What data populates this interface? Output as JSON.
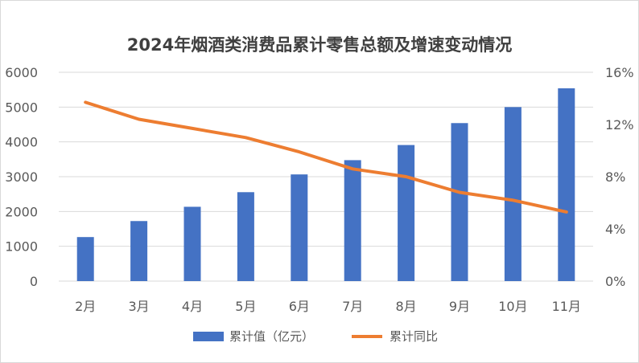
{
  "chart_data": {
    "type": "bar",
    "title": "2024年烟酒类消费品累计零售总额及增速变动情况",
    "categories": [
      "2月",
      "3月",
      "4月",
      "5月",
      "6月",
      "7月",
      "8月",
      "9月",
      "10月",
      "11月"
    ],
    "series": [
      {
        "name": "累计值（亿元）",
        "type": "bar",
        "axis": "left",
        "color": "#4472C4",
        "values": [
          1265,
          1725,
          2135,
          2555,
          3065,
          3475,
          3910,
          4540,
          5000,
          5540
        ]
      },
      {
        "name": "累计同比",
        "type": "line",
        "axis": "right",
        "color": "#ED7D31",
        "values": [
          13.7,
          12.4,
          11.7,
          11.0,
          9.9,
          8.6,
          8.0,
          6.8,
          6.2,
          5.3
        ]
      }
    ],
    "y_left": {
      "min": 0,
      "max": 6000,
      "ticks": [
        "0",
        "1000",
        "2000",
        "3000",
        "4000",
        "5000",
        "6000"
      ]
    },
    "y_right": {
      "min": 0,
      "max": 16,
      "ticks": [
        "0%",
        "4%",
        "8%",
        "12%",
        "16%"
      ]
    },
    "grid": true,
    "legend": "bottom"
  }
}
